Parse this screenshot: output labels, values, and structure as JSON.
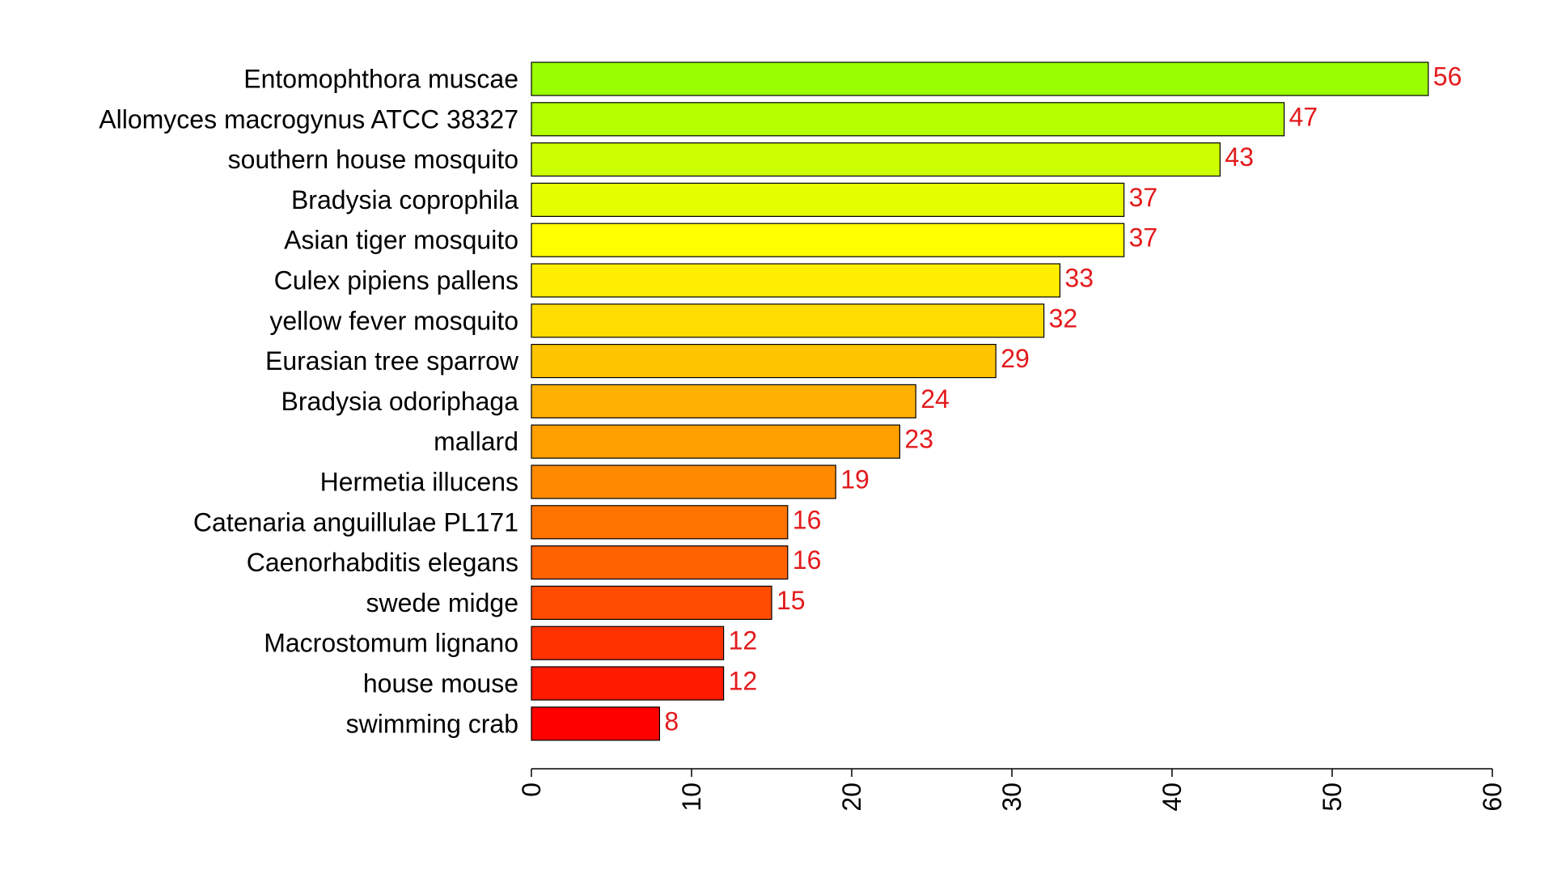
{
  "chart_data": {
    "type": "bar",
    "orientation": "horizontal",
    "title": "",
    "xlabel": "",
    "ylabel": "",
    "categories": [
      "Entomophthora muscae",
      "Allomyces macrogynus ATCC 38327",
      "southern house mosquito",
      "Bradysia coprophila",
      "Asian tiger mosquito",
      "Culex pipiens pallens",
      "yellow fever mosquito",
      "Eurasian tree sparrow",
      "Bradysia odoriphaga",
      "mallard",
      "Hermetia illucens",
      "Catenaria anguillulae PL171",
      "Caenorhabditis elegans",
      "swede midge",
      "Macrostomum lignano",
      "house mouse",
      "swimming crab"
    ],
    "values": [
      56,
      47,
      43,
      37,
      37,
      33,
      32,
      29,
      24,
      23,
      19,
      16,
      16,
      15,
      12,
      12,
      8
    ],
    "bar_colors": [
      "#99ff00",
      "#b3ff00",
      "#ccff00",
      "#e6ff00",
      "#ffff00",
      "#ffee00",
      "#ffdd00",
      "#ffc400",
      "#ffb000",
      "#ff9f00",
      "#ff8a00",
      "#ff7400",
      "#ff6200",
      "#ff4c00",
      "#ff3200",
      "#ff1a00",
      "#ff0000"
    ],
    "value_label_color": "#e31a1c",
    "xlim": [
      0,
      60
    ],
    "xticks": [
      0,
      10,
      20,
      30,
      40,
      50,
      60
    ],
    "grid": false,
    "legend": "none"
  }
}
